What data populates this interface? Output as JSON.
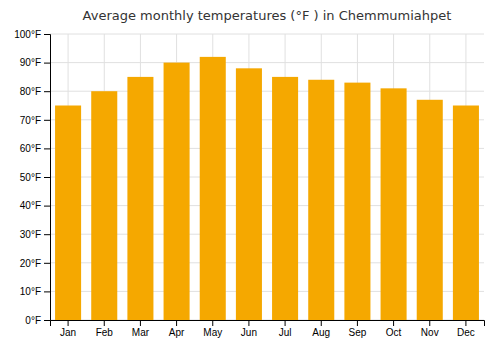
{
  "chart_data": {
    "type": "bar",
    "title": "Average monthly temperatures (°F ) in Chemmumiahpet",
    "categories": [
      "Jan",
      "Feb",
      "Mar",
      "Apr",
      "May",
      "Jun",
      "Jul",
      "Aug",
      "Sep",
      "Oct",
      "Nov",
      "Dec"
    ],
    "values": [
      75,
      80,
      85,
      90,
      92,
      88,
      85,
      84,
      83,
      81,
      77,
      75
    ],
    "color": "#F5A800",
    "ylim": [
      0,
      100
    ],
    "yticks": [
      {
        "value": 0,
        "label": "0°F"
      },
      {
        "value": 10,
        "label": "10°F"
      },
      {
        "value": 20,
        "label": "20°F"
      },
      {
        "value": 30,
        "label": "30°F"
      },
      {
        "value": 40,
        "label": "40°F"
      },
      {
        "value": 50,
        "label": "50°F"
      },
      {
        "value": 60,
        "label": "60°F"
      },
      {
        "value": 70,
        "label": "70°F"
      },
      {
        "value": 80,
        "label": "80°F"
      },
      {
        "value": 90,
        "label": "90°F"
      },
      {
        "value": 100,
        "label": "100°F"
      }
    ],
    "grid": true
  }
}
